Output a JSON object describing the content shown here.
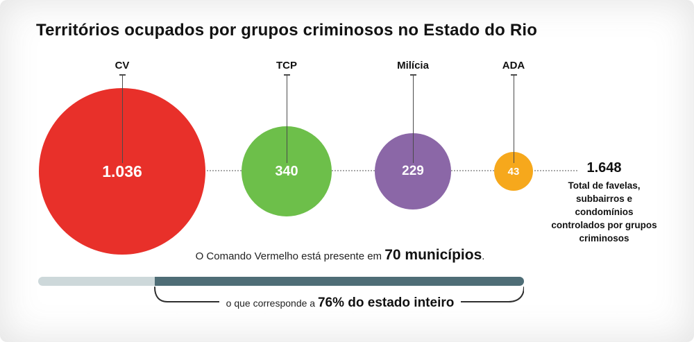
{
  "chart_data": {
    "type": "bubble",
    "title": "Territórios ocupados por grupos criminosos no Estado do Rio",
    "groups": [
      {
        "label": "CV",
        "value": 1036,
        "display": "1.036",
        "color": "#e8302a"
      },
      {
        "label": "TCP",
        "value": 340,
        "display": "340",
        "color": "#6dbf4a"
      },
      {
        "label": "Milícia",
        "value": 229,
        "display": "229",
        "color": "#8b67a7"
      },
      {
        "label": "ADA",
        "value": 43,
        "display": "43",
        "color": "#f6a81c"
      }
    ],
    "total": {
      "value": 1648,
      "display": "1.648",
      "caption": "Total de favelas, subbairros e condomínios controlados por grupos criminosos"
    },
    "annotation": {
      "prefix": "O Comando Vermelho está presente em ",
      "strong": "70 municípios",
      "suffix": "."
    },
    "bar": {
      "light_color": "#cdd8da",
      "dark_color": "#4e6d76",
      "dark_percent": 76
    },
    "brace": {
      "prefix": "o que corresponde a ",
      "strong": "76% do estado inteiro"
    },
    "guide_line": "dotted",
    "legend_position": "none"
  }
}
